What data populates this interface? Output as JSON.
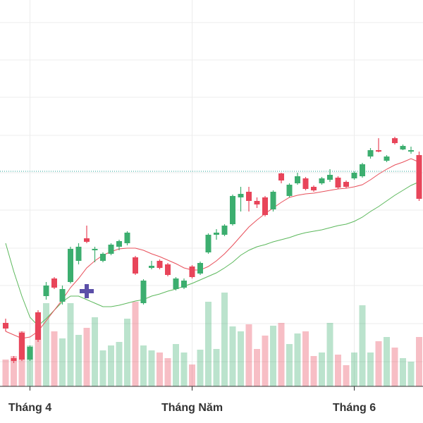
{
  "chart_data": {
    "type": "candlestick",
    "categories": [
      null,
      null,
      null,
      "Tháng 4",
      null,
      null,
      null,
      null,
      null,
      null,
      null,
      null,
      null,
      null,
      null,
      null,
      null,
      null,
      null,
      null,
      null,
      null,
      null,
      "Tháng Năm",
      null,
      null,
      null,
      null,
      null,
      null,
      null,
      null,
      null,
      null,
      null,
      null,
      null,
      null,
      null,
      null,
      null,
      null,
      null,
      "Tháng 6",
      null,
      null,
      null,
      null,
      null,
      null,
      null,
      null
    ],
    "open": [
      87,
      37,
      73,
      35,
      102,
      125,
      150,
      117,
      145,
      175,
      207,
      190,
      175,
      185,
      195,
      200,
      180,
      115,
      165,
      175,
      170,
      135,
      137,
      167,
      157,
      187,
      212,
      212,
      227,
      265,
      273,
      260,
      265,
      248,
      299,
      267,
      285,
      292,
      280,
      285,
      290,
      293,
      287,
      292,
      295,
      323,
      332,
      317,
      349,
      333,
      330,
      325
    ],
    "high": [
      93,
      40,
      75,
      55,
      105,
      145,
      152,
      140,
      195,
      200,
      225,
      195,
      187,
      200,
      205,
      217,
      182,
      149,
      175,
      177,
      172,
      152,
      150,
      169,
      174,
      214,
      220,
      227,
      269,
      280,
      280,
      265,
      267,
      275,
      300,
      285,
      300,
      294,
      282,
      294,
      305,
      295,
      289,
      302,
      314,
      335,
      349,
      325,
      351,
      340,
      337,
      330
    ],
    "low": [
      75,
      30,
      33,
      33,
      60,
      120,
      135,
      113,
      143,
      170,
      200,
      173,
      173,
      183,
      190,
      197,
      155,
      113,
      163,
      163,
      153,
      133,
      135,
      150,
      155,
      185,
      205,
      210,
      225,
      245,
      245,
      250,
      238,
      245,
      285,
      265,
      283,
      275,
      273,
      283,
      287,
      277,
      278,
      290,
      293,
      320,
      329,
      315,
      340,
      332,
      327,
      260
    ],
    "close": [
      79,
      33,
      35,
      53,
      63,
      140,
      137,
      135,
      192,
      195,
      202,
      192,
      185,
      198,
      203,
      215,
      157,
      147,
      168,
      165,
      155,
      150,
      147,
      152,
      172,
      212,
      215,
      225,
      267,
      270,
      260,
      255,
      240,
      273,
      289,
      283,
      295,
      277,
      275,
      292,
      297,
      279,
      280,
      300,
      312,
      332,
      330,
      323,
      342,
      338,
      332,
      263
    ],
    "volume": [
      38,
      43,
      78,
      58,
      88,
      118,
      78,
      68,
      118,
      73,
      83,
      98,
      51,
      58,
      63,
      96,
      120,
      58,
      51,
      48,
      40,
      60,
      48,
      31,
      52,
      120,
      53,
      133,
      85,
      78,
      88,
      53,
      72,
      86,
      90,
      60,
      75,
      78,
      43,
      48,
      90,
      45,
      30,
      48,
      115,
      48,
      64,
      70,
      55,
      40,
      35,
      70
    ],
    "series": [
      {
        "color": "#e8505b",
        "values": [
          75,
          70,
          65,
          67,
          75,
          90,
          105,
          120,
          137,
          150,
          165,
          175,
          183,
          188,
          192,
          193,
          193,
          190,
          185,
          181,
          176,
          171,
          165,
          162,
          162,
          167,
          175,
          185,
          197,
          210,
          223,
          233,
          242,
          250,
          258,
          265,
          268,
          270,
          271,
          273,
          275,
          277,
          278,
          280,
          283,
          290,
          298,
          305,
          311,
          315,
          320,
          315
        ]
      },
      {
        "color": "#5cb85c",
        "values": [
          200,
          160,
          125,
          95,
          83,
          93,
          105,
          117,
          125,
          125,
          120,
          115,
          110,
          110,
          112,
          115,
          118,
          120,
          125,
          128,
          132,
          135,
          139,
          143,
          148,
          153,
          158,
          165,
          173,
          183,
          190,
          195,
          198,
          202,
          205,
          208,
          212,
          215,
          217,
          219,
          222,
          225,
          227,
          231,
          237,
          245,
          252,
          260,
          268,
          275,
          282,
          287
        ]
      }
    ],
    "up_color": "#3cae6f",
    "down_color": "#e8455a",
    "price_line": 302,
    "ylim": [
      0,
      545
    ],
    "volume_ylim": [
      0,
      548
    ],
    "yticks": [
      32,
      86,
      140,
      193,
      247,
      300,
      353,
      407,
      460,
      513
    ],
    "grid": true
  }
}
